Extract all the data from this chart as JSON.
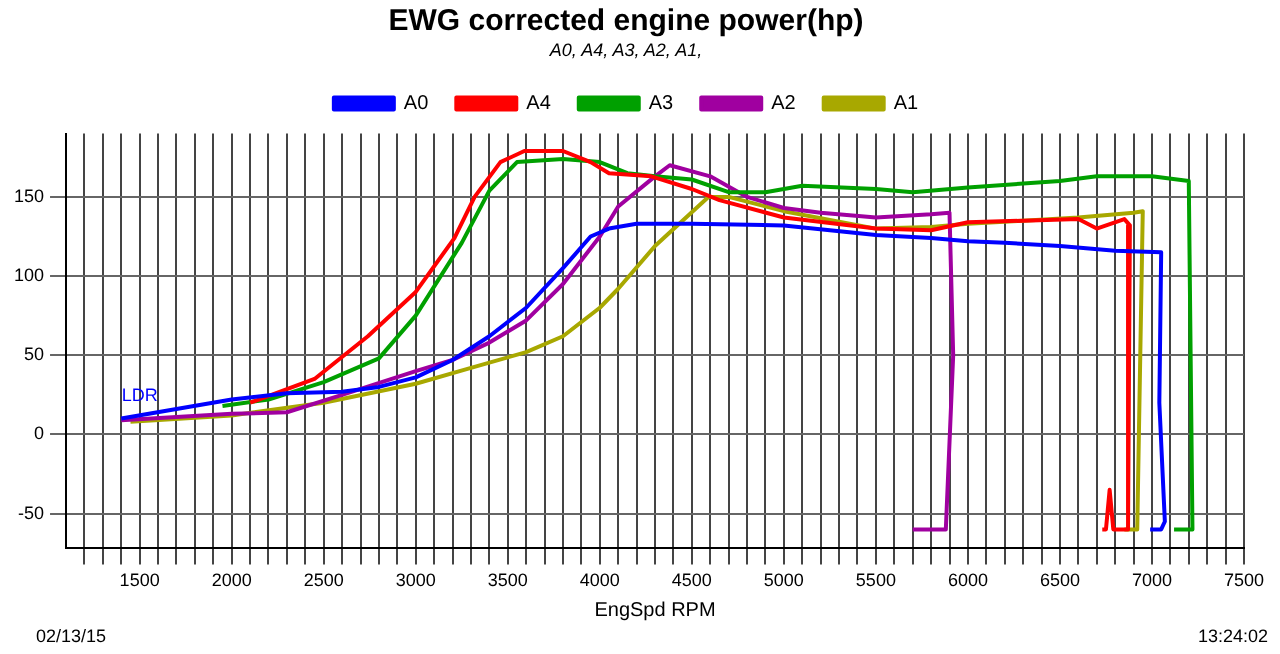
{
  "chart_data": {
    "type": "line",
    "title": "EWG corrected engine power(hp)",
    "subtitle": "A0, A4, A3, A2, A1,",
    "xlabel": "EngSpd RPM",
    "annotations": [
      {
        "text": "LDR",
        "x": 1500,
        "y": 12
      },
      "02/13/15",
      "13:24:02"
    ],
    "series": [
      {
        "name": "A0",
        "color": "#0000ff",
        "x": [
          1400,
          1700,
          2000,
          2300,
          2600,
          2800,
          3000,
          3200,
          3400,
          3600,
          3800,
          3950,
          4050,
          4200,
          4500,
          5000,
          5500,
          5800,
          6000,
          6200,
          6500,
          6800,
          7050,
          7040,
          7070,
          7050,
          6990
        ],
        "values": [
          10,
          16,
          22,
          26,
          27,
          30,
          36,
          47,
          62,
          80,
          105,
          125,
          130,
          133,
          133,
          132,
          126,
          124,
          122,
          121,
          119,
          116,
          115,
          20,
          -55,
          -60,
          -60
        ]
      },
      {
        "name": "A4",
        "color": "#ff0000",
        "x": [
          2100,
          2450,
          2740,
          3000,
          3210,
          3320,
          3460,
          3590,
          3800,
          3950,
          4050,
          4280,
          4500,
          4650,
          5000,
          5500,
          5800,
          6000,
          6300,
          6600,
          6700,
          6850,
          6880,
          6870,
          6790,
          6770,
          6750,
          6730
        ],
        "values": [
          20,
          35,
          62,
          90,
          124,
          150,
          172,
          179,
          179,
          172,
          165,
          163,
          155,
          148,
          137,
          130,
          129,
          134,
          135,
          136,
          130,
          136,
          132,
          -60,
          -60,
          -35,
          -60,
          -60
        ]
      },
      {
        "name": "A3",
        "color": "#00a000",
        "x": [
          1950,
          2200,
          2500,
          2800,
          3000,
          3250,
          3400,
          3550,
          3800,
          4000,
          4150,
          4300,
          4500,
          4700,
          4900,
          5100,
          5500,
          5700,
          6000,
          6500,
          6700,
          7000,
          7200,
          7220,
          7120
        ],
        "values": [
          18,
          22,
          33,
          48,
          75,
          121,
          154,
          172,
          174,
          172,
          165,
          163,
          161,
          153,
          153,
          157,
          155,
          153,
          156,
          160,
          163,
          163,
          160,
          -60,
          -60
        ]
      },
      {
        "name": "A2",
        "color": "#a000a0",
        "x": [
          1400,
          2000,
          2300,
          2600,
          3000,
          3200,
          3400,
          3600,
          3800,
          4000,
          4100,
          4300,
          4380,
          4600,
          4800,
          5000,
          5200,
          5500,
          5800,
          5900,
          5920,
          5880,
          5700
        ],
        "values": [
          9,
          13,
          14,
          25,
          40,
          47,
          58,
          72,
          95,
          125,
          144,
          163,
          170,
          163,
          150,
          143,
          140,
          137,
          139,
          140,
          50,
          -60,
          -60
        ]
      },
      {
        "name": "A1",
        "color": "#a8a800",
        "x": [
          1450,
          2000,
          2500,
          3000,
          3300,
          3600,
          3800,
          4000,
          4100,
          4300,
          4590,
          4700,
          5000,
          5500,
          5800,
          6000,
          6300,
          6600,
          6900,
          6950,
          6920,
          6850
        ],
        "values": [
          8,
          12,
          20,
          32,
          42,
          52,
          62,
          80,
          92,
          119,
          150,
          150,
          141,
          130,
          131,
          133,
          135,
          137,
          140,
          141,
          -60,
          -60
        ]
      }
    ],
    "xlim": [
      1100,
      7500
    ],
    "ylim": [
      -72,
      190
    ],
    "xticks": [
      {
        "value": 1200,
        "label": null
      },
      {
        "value": 1300,
        "label": null
      },
      {
        "value": 1400,
        "label": null
      },
      1500,
      {
        "value": 1600,
        "label": null
      },
      {
        "value": 1700,
        "label": null
      },
      {
        "value": 1800,
        "label": null
      },
      {
        "value": 1900,
        "label": null
      },
      2000,
      {
        "value": 2100,
        "label": null
      },
      {
        "value": 2200,
        "label": null
      },
      {
        "value": 2300,
        "label": null
      },
      {
        "value": 2400,
        "label": null
      },
      2500,
      {
        "value": 2600,
        "label": null
      },
      {
        "value": 2700,
        "label": null
      },
      {
        "value": 2800,
        "label": null
      },
      {
        "value": 2900,
        "label": null
      },
      3000,
      {
        "value": 3100,
        "label": null
      },
      {
        "value": 3200,
        "label": null
      },
      {
        "value": 3300,
        "label": null
      },
      {
        "value": 3400,
        "label": null
      },
      3500,
      {
        "value": 3600,
        "label": null
      },
      {
        "value": 3700,
        "label": null
      },
      {
        "value": 3800,
        "label": null
      },
      {
        "value": 3900,
        "label": null
      },
      4000,
      {
        "value": 4100,
        "label": null
      },
      {
        "value": 4200,
        "label": null
      },
      {
        "value": 4300,
        "label": null
      },
      {
        "value": 4400,
        "label": null
      },
      4500,
      {
        "value": 4600,
        "label": null
      },
      {
        "value": 4700,
        "label": null
      },
      {
        "value": 4800,
        "label": null
      },
      {
        "value": 4900,
        "label": null
      },
      5000,
      {
        "value": 5100,
        "label": null
      },
      {
        "value": 5200,
        "label": null
      },
      {
        "value": 5300,
        "label": null
      },
      {
        "value": 5400,
        "label": null
      },
      5500,
      {
        "value": 5600,
        "label": null
      },
      {
        "value": 5700,
        "label": null
      },
      {
        "value": 5800,
        "label": null
      },
      {
        "value": 5900,
        "label": null
      },
      6000,
      {
        "value": 6100,
        "label": null
      },
      {
        "value": 6200,
        "label": null
      },
      {
        "value": 6300,
        "label": null
      },
      {
        "value": 6400,
        "label": null
      },
      6500,
      {
        "value": 6600,
        "label": null
      },
      {
        "value": 6700,
        "label": null
      },
      {
        "value": 6800,
        "label": null
      },
      {
        "value": 6900,
        "label": null
      },
      7000,
      {
        "value": 7100,
        "label": null
      },
      {
        "value": 7200,
        "label": null
      },
      {
        "value": 7300,
        "label": null
      },
      {
        "value": 7400,
        "label": null
      },
      7500
    ],
    "yticks": [
      -50,
      0,
      50,
      100,
      150
    ],
    "grid": true,
    "legend": "top",
    "marker": "none",
    "line_style": "solid"
  }
}
